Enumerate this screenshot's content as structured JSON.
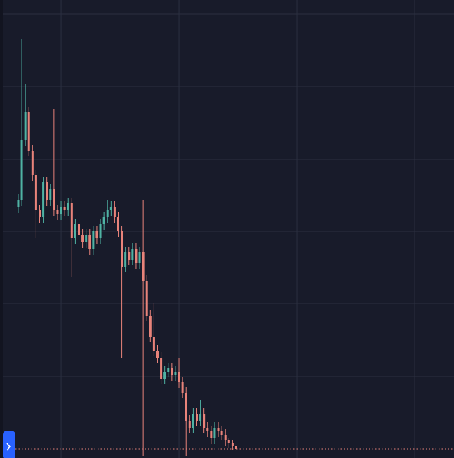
{
  "chart_data": {
    "type": "candlestick",
    "x": [
      0,
      1,
      2,
      3,
      4,
      5,
      6,
      7,
      8,
      9,
      10,
      11,
      12,
      13,
      14,
      15,
      16,
      17,
      18,
      19,
      20,
      21,
      22,
      23,
      24,
      25,
      26,
      27,
      28,
      29,
      30,
      31,
      32,
      33,
      34,
      35,
      36,
      37,
      38,
      39,
      40,
      41,
      42,
      43,
      44,
      45,
      46,
      47,
      48,
      49,
      50,
      51,
      52,
      53,
      54,
      55,
      56,
      57,
      58,
      59,
      60,
      61
    ],
    "open": [
      358,
      368,
      453,
      493,
      438,
      403,
      353,
      343,
      393,
      368,
      383,
      353,
      348,
      358,
      353,
      363,
      313,
      333,
      318,
      308,
      318,
      298,
      323,
      313,
      333,
      343,
      353,
      358,
      343,
      323,
      273,
      293,
      283,
      298,
      278,
      293,
      253,
      203,
      173,
      153,
      143,
      113,
      123,
      128,
      118,
      123,
      108,
      93,
      53,
      43,
      63,
      53,
      63,
      43,
      38,
      28,
      43,
      38,
      33,
      25,
      21,
      17
    ],
    "high": [
      376,
      598,
      533,
      501,
      446,
      411,
      361,
      401,
      401,
      391,
      498,
      361,
      366,
      366,
      371,
      371,
      341,
      341,
      326,
      326,
      326,
      331,
      331,
      341,
      351,
      368,
      366,
      366,
      351,
      331,
      301,
      301,
      306,
      306,
      301,
      368,
      261,
      211,
      221,
      161,
      151,
      131,
      136,
      136,
      131,
      143,
      116,
      101,
      61,
      71,
      71,
      83,
      71,
      51,
      46,
      51,
      51,
      46,
      41,
      29,
      25,
      21
    ],
    "low": [
      350,
      360,
      445,
      430,
      395,
      313,
      335,
      335,
      360,
      360,
      345,
      340,
      340,
      345,
      345,
      258,
      305,
      310,
      300,
      300,
      290,
      290,
      305,
      305,
      325,
      335,
      345,
      335,
      315,
      143,
      265,
      275,
      275,
      270,
      270,
      3,
      195,
      165,
      145,
      135,
      105,
      105,
      115,
      110,
      110,
      100,
      85,
      3,
      35,
      35,
      45,
      45,
      35,
      30,
      20,
      20,
      30,
      25,
      17,
      14,
      12,
      10
    ],
    "close": [
      368,
      453,
      493,
      438,
      403,
      353,
      343,
      393,
      368,
      383,
      353,
      348,
      358,
      353,
      363,
      313,
      333,
      318,
      308,
      318,
      298,
      323,
      313,
      333,
      343,
      353,
      358,
      343,
      323,
      273,
      293,
      283,
      298,
      278,
      293,
      253,
      203,
      173,
      153,
      143,
      113,
      123,
      128,
      118,
      123,
      108,
      93,
      53,
      43,
      63,
      53,
      63,
      43,
      38,
      28,
      43,
      38,
      33,
      25,
      21,
      17,
      13
    ],
    "up_color": "#4fb3a4",
    "down_color": "#e8837a",
    "xlim": [
      -5.1,
      122.0
    ],
    "xticks": [
      12,
      45,
      78,
      111
    ],
    "ylim": [
      0,
      653
    ],
    "yticks": [
      116,
      220,
      323,
      426,
      530,
      633
    ],
    "grid": true,
    "grid_color": "#2b2f40",
    "price_line": 13,
    "price_line_color": "#e8837a"
  }
}
